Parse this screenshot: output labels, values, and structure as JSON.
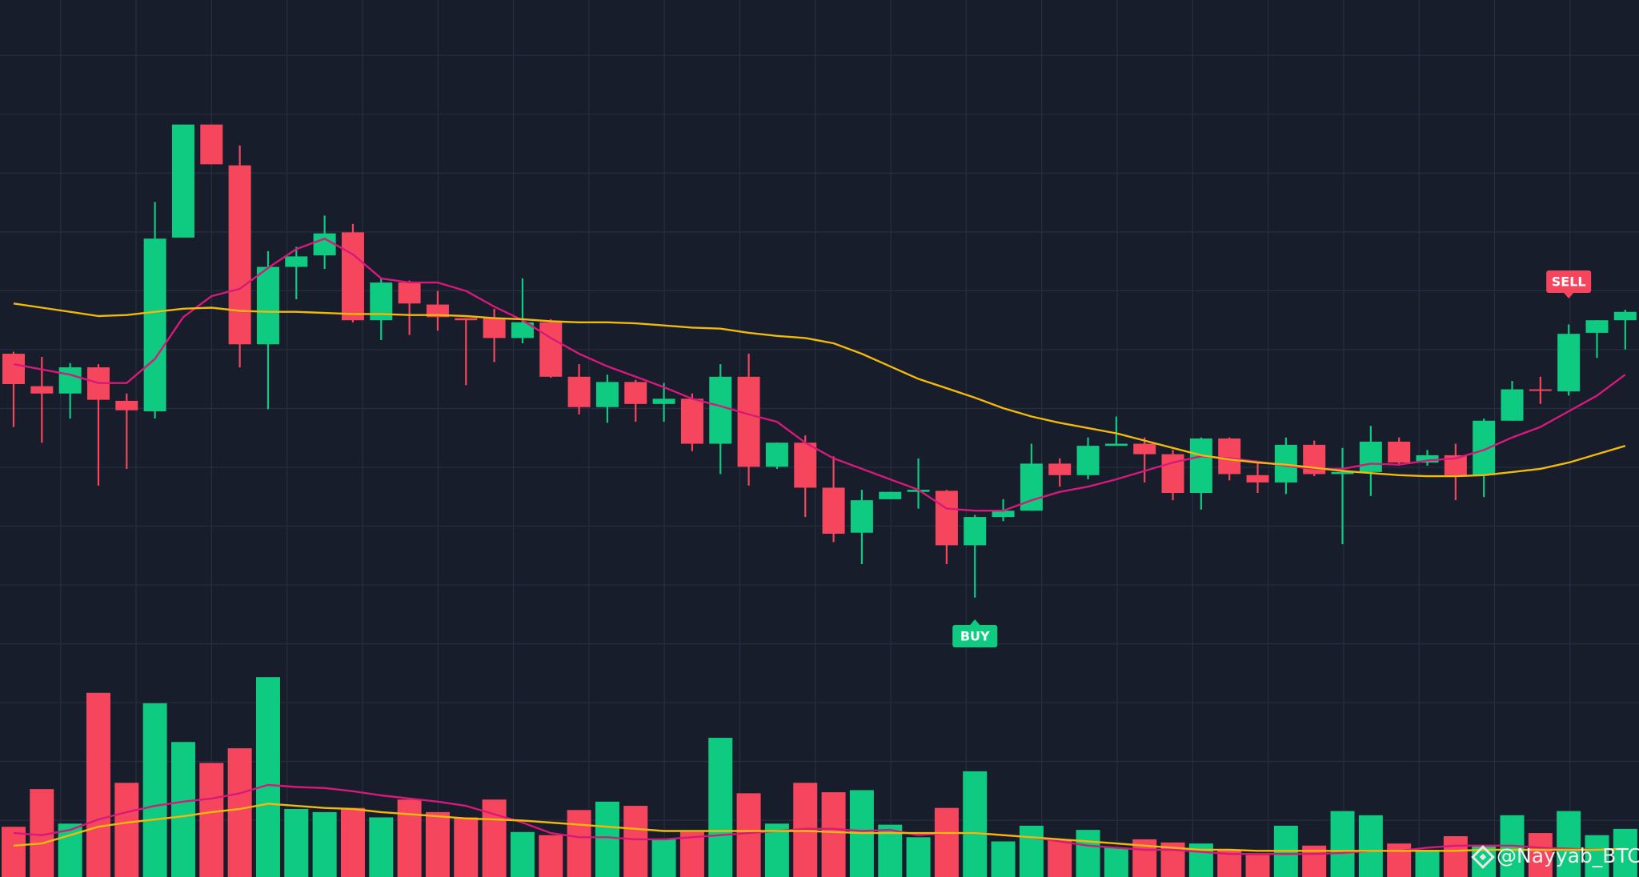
{
  "chart_data": {
    "type": "candlestick",
    "ylim": [
      0,
      840
    ],
    "volume_ylim": [
      0,
      838
    ],
    "grid": true,
    "up_color": "#0ecb81",
    "down_color": "#f6465d",
    "open": [
      500,
      469,
      462,
      487,
      455,
      445,
      611,
      719,
      680,
      509,
      583,
      594,
      616,
      532,
      568,
      547,
      534,
      534,
      515,
      530,
      478,
      449,
      473,
      452,
      457,
      414,
      478,
      392,
      415,
      372,
      329,
      361,
      368,
      369,
      317,
      344,
      350,
      395,
      384,
      412,
      414,
      404,
      367,
      419,
      384,
      377,
      413,
      385,
      387,
      416,
      396,
      403,
      384,
      436,
      466,
      464,
      520,
      532
    ],
    "high": [
      502,
      497,
      491,
      490,
      462,
      645,
      719,
      719,
      699,
      598,
      602,
      632,
      624,
      572,
      570,
      560,
      534,
      543,
      572,
      533,
      490,
      480,
      475,
      472,
      462,
      490,
      500,
      415,
      422,
      402,
      370,
      368,
      400,
      370,
      346,
      361,
      414,
      400,
      420,
      440,
      420,
      408,
      420,
      420,
      396,
      420,
      417,
      410,
      431,
      420,
      408,
      414,
      438,
      474,
      478,
      528,
      532,
      542
    ],
    "low": [
      430,
      415,
      438,
      374,
      390,
      438,
      611,
      681,
      487,
      447,
      552,
      581,
      530,
      513,
      518,
      522,
      470,
      492,
      510,
      477,
      442,
      434,
      435,
      435,
      407,
      385,
      374,
      390,
      344,
      320,
      299,
      361,
      352,
      299,
      267,
      340,
      350,
      373,
      380,
      412,
      377,
      360,
      351,
      379,
      367,
      366,
      383,
      318,
      364,
      393,
      393,
      360,
      363,
      436,
      452,
      460,
      496,
      504
    ],
    "close": [
      471,
      462,
      487,
      456,
      446,
      610,
      719,
      681,
      509,
      583,
      593,
      615,
      532,
      568,
      548,
      535,
      532,
      515,
      530,
      478,
      449,
      473,
      452,
      457,
      414,
      478,
      392,
      415,
      372,
      328,
      360,
      368,
      370,
      317,
      344,
      350,
      395,
      384,
      412,
      414,
      404,
      367,
      419,
      385,
      377,
      413,
      385,
      387,
      416,
      396,
      403,
      384,
      436,
      466,
      465,
      519,
      532,
      540
    ],
    "volume": [
      48,
      84,
      51,
      176,
      90,
      166,
      129,
      109,
      123,
      191,
      65,
      62,
      66,
      57,
      74,
      62,
      57,
      74,
      43,
      40,
      64,
      72,
      68,
      36,
      43,
      133,
      80,
      51,
      90,
      81,
      83,
      50,
      38,
      66,
      101,
      34,
      49,
      36,
      45,
      28,
      36,
      33,
      32,
      26,
      21,
      49,
      30,
      63,
      59,
      32,
      26,
      39,
      30,
      59,
      42,
      63,
      40,
      46
    ],
    "series": [
      {
        "color": "#d6197a",
        "axis": "price",
        "values": [
          490,
          485,
          480,
          472,
          472,
          495,
          535,
          555,
          562,
          582,
          600,
          610,
          595,
          572,
          568,
          568,
          560,
          545,
          532,
          515,
          500,
          488,
          478,
          468,
          457,
          450,
          442,
          435,
          415,
          400,
          390,
          380,
          370,
          352,
          350,
          350,
          360,
          368,
          373,
          380,
          388,
          396,
          402,
          400,
          397,
          393,
          390,
          390,
          395,
          394,
          398,
          400,
          408,
          420,
          430,
          445,
          460,
          480
        ]
      },
      {
        "color": "#f0b90b",
        "axis": "price",
        "values": [
          548,
          544,
          540,
          536,
          537,
          540,
          543,
          544,
          541,
          540,
          540,
          539,
          538,
          538,
          537,
          537,
          536,
          534,
          533,
          531,
          530,
          530,
          529,
          527,
          525,
          524,
          520,
          517,
          515,
          510,
          500,
          488,
          476,
          467,
          458,
          448,
          440,
          434,
          429,
          424,
          417,
          410,
          403,
          399,
          396,
          394,
          391,
          388,
          386,
          384,
          383,
          383,
          384,
          387,
          390,
          396,
          404,
          412
        ]
      },
      {
        "color": "#d6197a",
        "axis": "volume",
        "values": [
          42,
          40,
          45,
          55,
          62,
          68,
          72,
          75,
          80,
          88,
          86,
          85,
          82,
          78,
          75,
          72,
          68,
          60,
          52,
          42,
          38,
          38,
          36,
          36,
          38,
          40,
          42,
          44,
          46,
          46,
          44,
          45,
          40,
          42,
          42,
          40,
          38,
          34,
          30,
          28,
          26,
          26,
          24,
          22,
          22,
          22,
          22,
          23,
          25,
          25,
          28,
          30,
          30,
          30,
          28,
          27,
          26,
          27
        ]
      },
      {
        "color": "#f0b90b",
        "axis": "volume",
        "values": [
          30,
          32,
          40,
          48,
          52,
          55,
          58,
          62,
          65,
          70,
          68,
          66,
          65,
          62,
          60,
          58,
          56,
          55,
          54,
          52,
          50,
          48,
          46,
          44,
          44,
          44,
          44,
          44,
          44,
          43,
          42,
          42,
          42,
          42,
          42,
          40,
          38,
          36,
          34,
          32,
          30,
          28,
          26,
          26,
          25,
          25,
          25,
          25,
          25,
          25,
          25,
          25,
          26,
          26,
          26,
          26,
          26,
          27
        ]
      }
    ],
    "annotations": [
      "BUY",
      "SELL"
    ],
    "watermark": "@Nayyab_BTC"
  }
}
